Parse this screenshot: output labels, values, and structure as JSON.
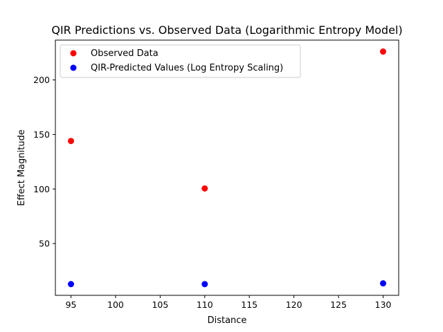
{
  "chart_data": {
    "type": "scatter",
    "title": "QIR Predictions vs. Observed Data (Logarithmic Entropy Model)",
    "xlabel": "Distance",
    "ylabel": "Effect Magnitude",
    "xlim": [
      93.25,
      131.75
    ],
    "ylim": [
      2.5,
      236.5
    ],
    "xticks": [
      95,
      100,
      105,
      110,
      115,
      120,
      125,
      130
    ],
    "yticks": [
      50,
      100,
      150,
      200
    ],
    "grid": false,
    "legend_position": "top-left",
    "series": [
      {
        "name": "Observed Data",
        "color": "#ff0000",
        "x": [
          95,
          110,
          130
        ],
        "y": [
          144,
          100.5,
          226
        ]
      },
      {
        "name": "QIR-Predicted Values (Log Entropy Scaling)",
        "color": "#0000ff",
        "x": [
          95,
          110,
          130
        ],
        "y": [
          12.8,
          12.8,
          13.5
        ]
      }
    ]
  }
}
